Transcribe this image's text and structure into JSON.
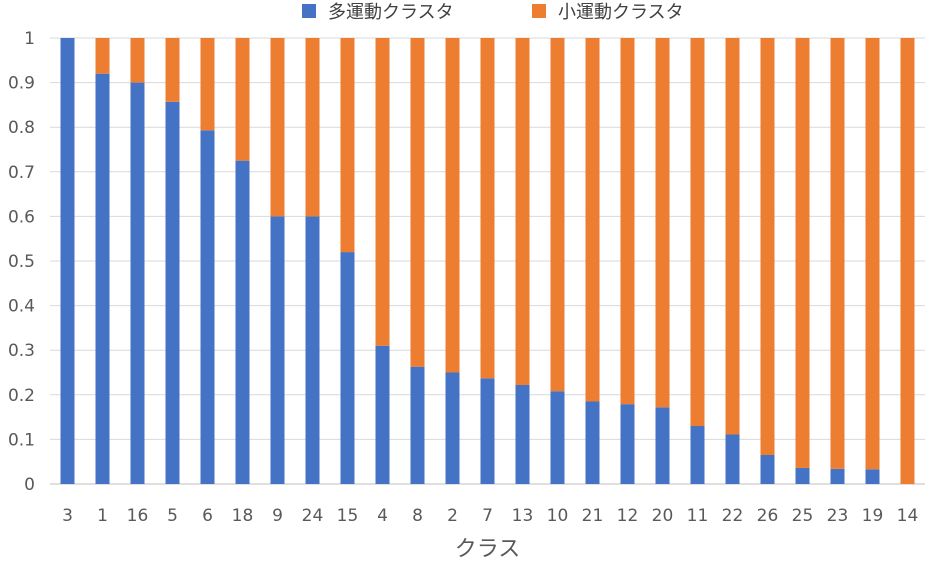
{
  "chart_data": {
    "type": "bar",
    "stacked": true,
    "xlabel": "クラス",
    "ylabel": "",
    "ylim": [
      0,
      1
    ],
    "yticks": [
      "0",
      "0.1",
      "0.2",
      "0.3",
      "0.4",
      "0.5",
      "0.6",
      "0.7",
      "0.8",
      "0.9",
      "1"
    ],
    "grid": true,
    "legend_position": "top",
    "categories": [
      "3",
      "1",
      "16",
      "5",
      "6",
      "18",
      "9",
      "24",
      "15",
      "4",
      "8",
      "2",
      "7",
      "13",
      "10",
      "21",
      "12",
      "20",
      "11",
      "22",
      "26",
      "25",
      "23",
      "19",
      "14"
    ],
    "series": [
      {
        "name": "多運動クラスタ",
        "color": "#4472C4",
        "values": [
          1.0,
          0.92,
          0.9,
          0.857,
          0.793,
          0.725,
          0.6,
          0.6,
          0.52,
          0.31,
          0.263,
          0.25,
          0.237,
          0.222,
          0.208,
          0.185,
          0.179,
          0.172,
          0.13,
          0.111,
          0.065,
          0.036,
          0.034,
          0.033,
          0.0
        ]
      },
      {
        "name": "小運動クラスタ",
        "color": "#ED7D31",
        "values": [
          0.0,
          0.08,
          0.1,
          0.143,
          0.207,
          0.275,
          0.4,
          0.4,
          0.48,
          0.69,
          0.737,
          0.75,
          0.763,
          0.778,
          0.792,
          0.815,
          0.821,
          0.828,
          0.87,
          0.889,
          0.935,
          0.964,
          0.966,
          0.967,
          1.0
        ]
      }
    ]
  }
}
